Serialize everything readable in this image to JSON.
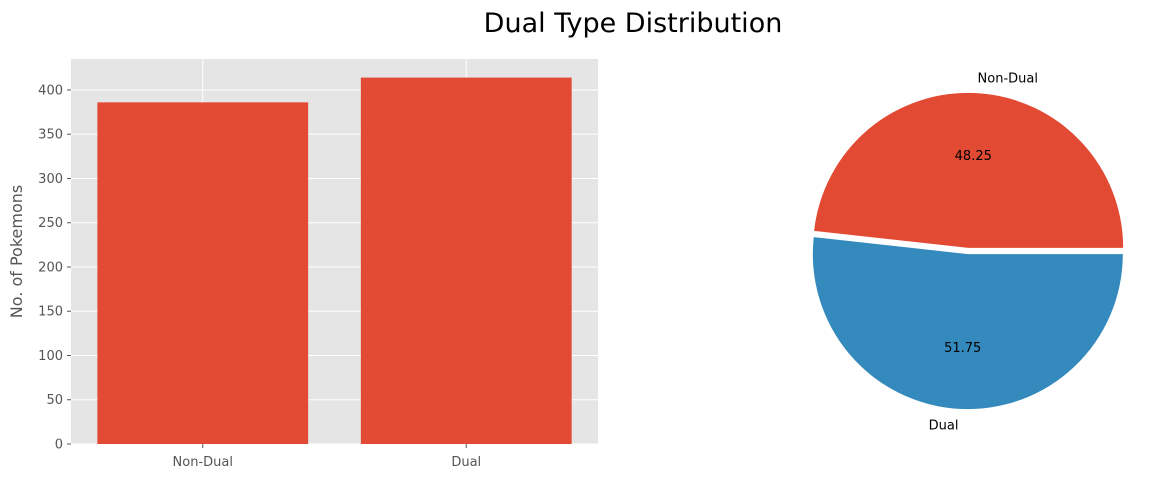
{
  "suptitle": "Dual Type Distribution",
  "chart_data": [
    {
      "type": "bar",
      "title": "",
      "xlabel": "",
      "ylabel": "No. of Pokemons",
      "categories": [
        "Non-Dual",
        "Dual"
      ],
      "values": [
        386,
        414
      ],
      "ylim": [
        0,
        435
      ],
      "yticks": [
        0,
        50,
        100,
        150,
        200,
        250,
        300,
        350,
        400
      ],
      "grid": true,
      "bar_color": "#E24A33",
      "background": "#E5E5E5"
    },
    {
      "type": "pie",
      "title": "",
      "labels": [
        "Non-Dual",
        "Dual"
      ],
      "values": [
        48.25,
        51.75
      ],
      "pct_labels": [
        "48.25",
        "51.75"
      ],
      "colors": [
        "#E24A33",
        "#348ABD"
      ],
      "explode": [
        0.02,
        0.02
      ],
      "legend": false
    }
  ]
}
